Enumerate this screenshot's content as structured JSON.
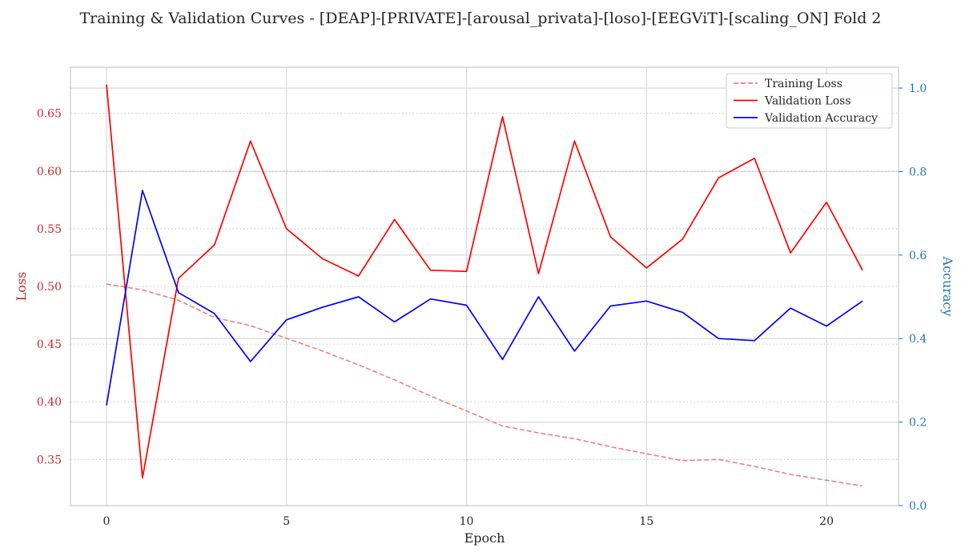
{
  "chart_data": {
    "type": "line",
    "title": "Training & Validation Curves - [DEAP]-[PRIVATE]-[arousal_privata]-[loso]-[EEGViT]-[scaling_ON] Fold 2",
    "xlabel": "Epoch",
    "ylabel_left": "Loss",
    "ylabel_right": "Accuracy",
    "xlim": [
      -1,
      22
    ],
    "ylim_left": [
      0.31,
      0.69
    ],
    "ylim_right": [
      0.0,
      1.05
    ],
    "xticks": [
      "0",
      "5",
      "10",
      "15",
      "20"
    ],
    "yticks_left": [
      "0.35",
      "0.40",
      "0.45",
      "0.50",
      "0.55",
      "0.60",
      "0.65"
    ],
    "yticks_right": [
      "0.0",
      "0.2",
      "0.4",
      "0.6",
      "0.8",
      "1.0"
    ],
    "grid": true,
    "legend_position": "top-right",
    "x": [
      0,
      1,
      2,
      3,
      4,
      5,
      6,
      7,
      8,
      9,
      10,
      11,
      12,
      13,
      14,
      15,
      16,
      17,
      18,
      19,
      20,
      21
    ],
    "series": [
      {
        "name": "Training Loss",
        "axis": "left",
        "style": "dashed",
        "color": "#f08080",
        "values": [
          0.502,
          0.497,
          0.488,
          0.473,
          0.466,
          0.455,
          0.444,
          0.432,
          0.419,
          0.405,
          0.392,
          0.379,
          0.373,
          0.368,
          0.361,
          0.355,
          0.349,
          0.35,
          0.344,
          0.337,
          0.332,
          0.327
        ]
      },
      {
        "name": "Validation Loss",
        "axis": "left",
        "style": "solid",
        "color": "#ff0000",
        "values": [
          0.675,
          0.334,
          0.507,
          0.536,
          0.626,
          0.55,
          0.524,
          0.509,
          0.558,
          0.514,
          0.513,
          0.647,
          0.511,
          0.626,
          0.543,
          0.516,
          0.541,
          0.594,
          0.611,
          0.529,
          0.573,
          0.514
        ]
      },
      {
        "name": "Validation Accuracy",
        "axis": "right",
        "style": "solid",
        "color": "#0000ff",
        "values": [
          0.24,
          0.755,
          0.51,
          0.46,
          0.345,
          0.445,
          0.475,
          0.5,
          0.44,
          0.495,
          0.48,
          0.35,
          0.5,
          0.37,
          0.478,
          0.49,
          0.463,
          0.4,
          0.395,
          0.473,
          0.43,
          0.49
        ]
      }
    ]
  }
}
